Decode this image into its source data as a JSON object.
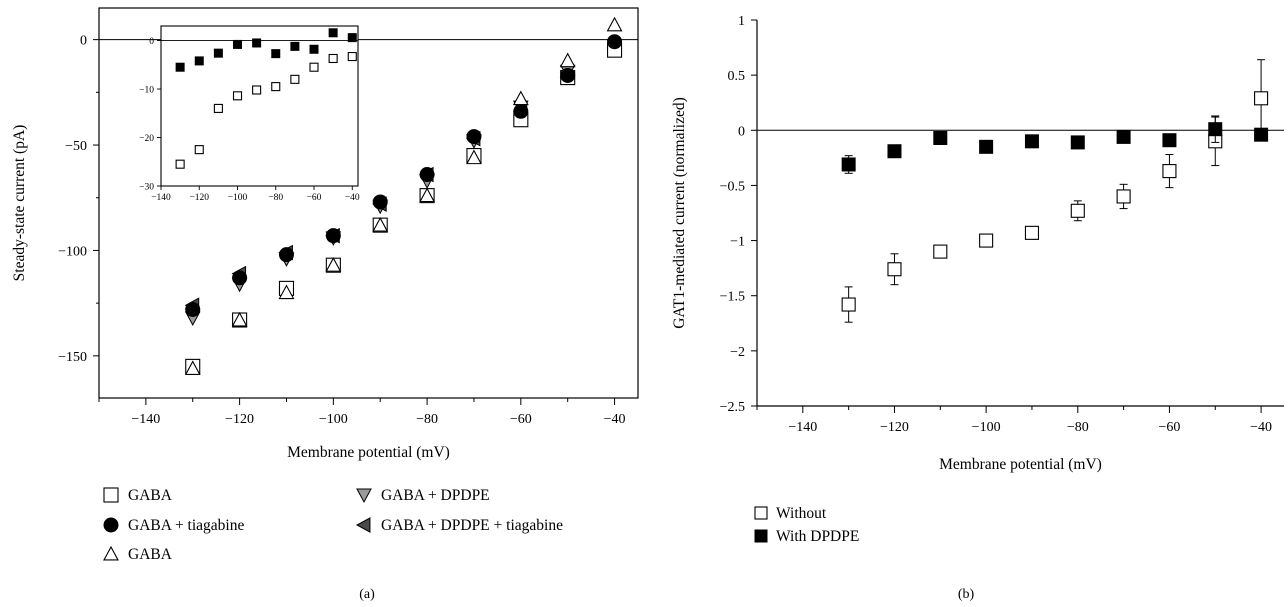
{
  "chart_data": [
    {
      "panel_label": "(a)",
      "type": "scatter",
      "xlabel": "Membrane potential (mV)",
      "ylabel": "Steady-state current (pA)",
      "xlim": [
        -150,
        -35
      ],
      "ylim": [
        -170,
        15
      ],
      "xticks": [
        -140,
        -120,
        -100,
        -80,
        -60,
        -40
      ],
      "xtick_labels": [
        "−140",
        "−120",
        "−100",
        "−80",
        "−60",
        "−40"
      ],
      "yticks": [
        0,
        -50,
        -100,
        -150
      ],
      "ytick_labels": [
        "0",
        "−50",
        "−100",
        "−150"
      ],
      "zero_line": true,
      "grid": false,
      "legend_position": "bottom",
      "series": [
        {
          "name": "GABA",
          "marker": "square-open",
          "x": [
            -130,
            -120,
            -110,
            -100,
            -90,
            -80,
            -70,
            -60,
            -50,
            -40
          ],
          "y": [
            -155,
            -133,
            -118,
            -107,
            -88,
            -74,
            -55,
            -38,
            -18,
            -5
          ]
        },
        {
          "name": "GABA + tiagabine",
          "marker": "circle-filled",
          "x": [
            -130,
            -120,
            -110,
            -100,
            -90,
            -80,
            -70,
            -60,
            -50,
            -40
          ],
          "y": [
            -128,
            -113,
            -102,
            -93,
            -77,
            -64,
            -46,
            -34,
            -17,
            -1
          ]
        },
        {
          "name": "GABA",
          "marker": "triangle-up-open",
          "x": [
            -130,
            -120,
            -110,
            -100,
            -90,
            -80,
            -70,
            -60,
            -50,
            -40
          ],
          "y": [
            -156,
            -133,
            -120,
            -107,
            -88,
            -74,
            -56,
            -28,
            -10,
            7
          ]
        },
        {
          "name": "GABA + DPDPE",
          "marker": "triangle-down-gray",
          "x": [
            -130,
            -120,
            -110,
            -100,
            -90,
            -80,
            -70,
            -60,
            -50,
            -40
          ],
          "y": [
            -132,
            -116,
            -104,
            -94,
            -79,
            -67,
            -48,
            -32,
            -15,
            -3
          ]
        },
        {
          "name": "GABA + DPDPE + tiagabine",
          "marker": "triangle-left-dark",
          "x": [
            -130,
            -120,
            -110,
            -100,
            -90,
            -80,
            -70,
            -60,
            -50,
            -40
          ],
          "y": [
            -126,
            -111,
            -101,
            -93,
            -78,
            -64,
            -47,
            -34,
            -18,
            -4
          ]
        }
      ],
      "inset": {
        "type": "scatter",
        "xlim": [
          -140,
          -37
        ],
        "ylim": [
          -30,
          3
        ],
        "xticks": [
          -140,
          -120,
          -100,
          -80,
          -60,
          -40
        ],
        "xtick_labels": [
          "−140",
          "−120",
          "−100",
          "−80",
          "−60",
          "−40"
        ],
        "yticks": [
          0,
          -10,
          -20,
          -30
        ],
        "ytick_labels": [
          "0",
          "−10",
          "−20",
          "−30"
        ],
        "zero_line": true,
        "series": [
          {
            "marker": "square-filled",
            "x": [
              -130,
              -120,
              -110,
              -100,
              -90,
              -80,
              -70,
              -60,
              -50,
              -40
            ],
            "y": [
              -5.5,
              -4.2,
              -2.6,
              -0.8,
              -0.5,
              -2.7,
              -1.2,
              -1.8,
              1.6,
              0.6
            ]
          },
          {
            "marker": "square-open",
            "x": [
              -130,
              -120,
              -110,
              -100,
              -90,
              -80,
              -70,
              -60,
              -50,
              -40
            ],
            "y": [
              -25.5,
              -22.5,
              -14,
              -11.4,
              -10.2,
              -9.5,
              -8,
              -5.5,
              -3.7,
              -3.3
            ]
          }
        ]
      }
    },
    {
      "panel_label": "(b)",
      "type": "scatter",
      "xlabel": "Membrane potential (mV)",
      "ylabel": "GAT1-mediated current (normalized)",
      "xlim": [
        -150,
        -35
      ],
      "ylim": [
        -2.5,
        1
      ],
      "xticks": [
        -140,
        -120,
        -100,
        -80,
        -60,
        -40
      ],
      "xtick_labels": [
        "−140",
        "−120",
        "−100",
        "−80",
        "−60",
        "−40"
      ],
      "yticks": [
        1,
        0.5,
        0,
        -0.5,
        -1,
        -1.5,
        -2,
        -2.5
      ],
      "ytick_labels": [
        "1",
        "0.5",
        "0",
        "−0.5",
        "−1",
        "−1.5",
        "−2",
        "−2.5"
      ],
      "zero_line": true,
      "grid": false,
      "legend_position": "bottom-left",
      "series": [
        {
          "name": "Without",
          "marker": "square-open",
          "x": [
            -130,
            -120,
            -110,
            -100,
            -90,
            -80,
            -70,
            -60,
            -50,
            -40
          ],
          "y": [
            -1.58,
            -1.26,
            -1.1,
            -1.0,
            -0.93,
            -0.73,
            -0.6,
            -0.37,
            -0.1,
            0.29
          ],
          "err": [
            0.16,
            0.14,
            0.04,
            0.05,
            0.05,
            0.09,
            0.11,
            0.15,
            0.22,
            0.35
          ]
        },
        {
          "name": "With DPDPE",
          "marker": "square-filled",
          "x": [
            -130,
            -120,
            -110,
            -100,
            -90,
            -80,
            -70,
            -60,
            -50,
            -40
          ],
          "y": [
            -0.31,
            -0.19,
            -0.07,
            -0.15,
            -0.1,
            -0.11,
            -0.06,
            -0.09,
            0.01,
            -0.04
          ],
          "err": [
            0.08,
            0.05,
            0.03,
            0.03,
            0.03,
            0.03,
            0.03,
            0.03,
            0.12,
            0.04
          ]
        }
      ]
    }
  ]
}
